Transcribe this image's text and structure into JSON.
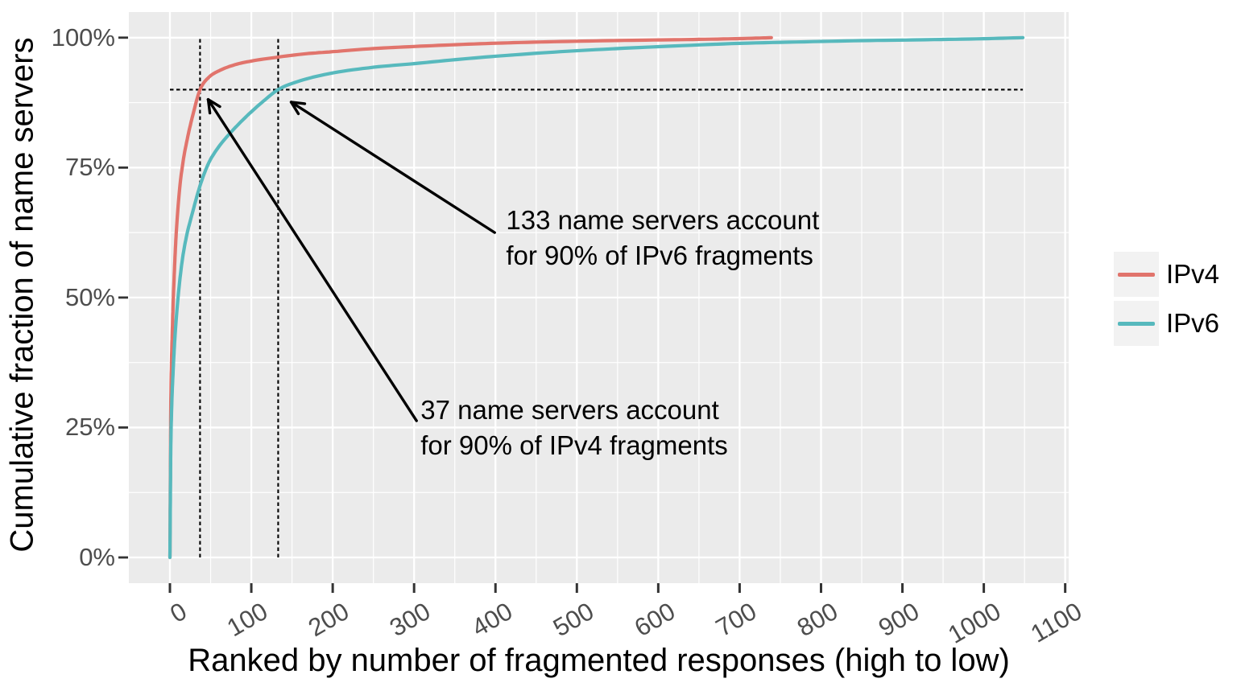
{
  "chart_data": {
    "type": "line",
    "title": "",
    "xlabel": "Ranked by number of fragmented responses (high to low)",
    "ylabel": "Cumulative fraction of name servers",
    "xlim": [
      -48,
      1105
    ],
    "ylim": [
      -5,
      105
    ],
    "grid": true,
    "legend_position": "right",
    "x_ticks": [
      {
        "label": "0",
        "value": 0
      },
      {
        "label": "100",
        "value": 100
      },
      {
        "label": "200",
        "value": 200
      },
      {
        "label": "300",
        "value": 300
      },
      {
        "label": "400",
        "value": 400
      },
      {
        "label": "500",
        "value": 500
      },
      {
        "label": "600",
        "value": 600
      },
      {
        "label": "700",
        "value": 700
      },
      {
        "label": "800",
        "value": 800
      },
      {
        "label": "900",
        "value": 900
      },
      {
        "label": "1000",
        "value": 1000
      },
      {
        "label": "1100",
        "value": 1100
      }
    ],
    "y_ticks": [
      {
        "label": "0%",
        "value": 0
      },
      {
        "label": "25%",
        "value": 25
      },
      {
        "label": "50%",
        "value": 50
      },
      {
        "label": "75%",
        "value": 75
      },
      {
        "label": "100%",
        "value": 100
      }
    ],
    "series": [
      {
        "name": "IPv4",
        "color": "#E1746C",
        "points": [
          [
            0,
            0
          ],
          [
            0.5,
            14
          ],
          [
            1,
            28
          ],
          [
            2,
            38
          ],
          [
            3,
            44
          ],
          [
            4,
            49
          ],
          [
            6,
            57
          ],
          [
            8,
            63
          ],
          [
            12,
            71
          ],
          [
            16,
            76
          ],
          [
            22,
            81
          ],
          [
            28,
            85
          ],
          [
            37,
            90
          ],
          [
            48,
            92.4
          ],
          [
            60,
            93.6
          ],
          [
            80,
            94.8
          ],
          [
            100,
            95.5
          ],
          [
            130,
            96.2
          ],
          [
            167,
            96.9
          ],
          [
            200,
            97.3
          ],
          [
            250,
            97.9
          ],
          [
            300,
            98.3
          ],
          [
            360,
            98.7
          ],
          [
            415,
            99.0
          ],
          [
            480,
            99.25
          ],
          [
            550,
            99.45
          ],
          [
            620,
            99.6
          ],
          [
            680,
            99.75
          ],
          [
            720,
            99.9
          ],
          [
            739,
            100
          ]
        ]
      },
      {
        "name": "IPv6",
        "color": "#57B9BD",
        "points": [
          [
            0,
            0
          ],
          [
            0.5,
            10
          ],
          [
            1,
            20
          ],
          [
            2,
            28
          ],
          [
            4,
            36
          ],
          [
            6,
            42
          ],
          [
            10,
            50
          ],
          [
            15,
            57
          ],
          [
            20,
            61.5
          ],
          [
            28,
            66.5
          ],
          [
            38,
            72
          ],
          [
            48,
            76
          ],
          [
            60,
            79
          ],
          [
            75,
            81.8
          ],
          [
            95,
            85
          ],
          [
            115,
            87.8
          ],
          [
            133,
            90
          ],
          [
            160,
            91.7
          ],
          [
            200,
            93.2
          ],
          [
            250,
            94.3
          ],
          [
            300,
            95.0
          ],
          [
            360,
            95.9
          ],
          [
            415,
            96.6
          ],
          [
            480,
            97.3
          ],
          [
            550,
            97.9
          ],
          [
            620,
            98.4
          ],
          [
            700,
            98.9
          ],
          [
            780,
            99.2
          ],
          [
            860,
            99.45
          ],
          [
            930,
            99.6
          ],
          [
            1000,
            99.8
          ],
          [
            1048,
            100
          ]
        ]
      }
    ],
    "guides": {
      "threshold_pct": 90,
      "ipv4_rank_at_90pct": 37,
      "ipv6_rank_at_90pct": 133,
      "hline_extends_to_rank": 1048
    },
    "annotations": [
      {
        "id": "ipv6",
        "line1": "133 name servers account",
        "line2": "for 90% of IPv6 fragments",
        "text_pos": [
          413,
          68.3
        ],
        "arrow_from": [
          399,
          62.5
        ],
        "arrow_to": [
          149,
          87.6
        ]
      },
      {
        "id": "ipv4",
        "line1": "37 name servers account",
        "line2": "for 90% of IPv4 fragments",
        "text_pos": [
          308,
          31.7
        ],
        "arrow_from": [
          303,
          26.3
        ],
        "arrow_to": [
          47,
          88.1
        ]
      }
    ],
    "legend": {
      "entries": [
        {
          "label": "IPv4",
          "color": "#E1746C"
        },
        {
          "label": "IPv6",
          "color": "#57B9BD"
        }
      ]
    }
  },
  "style_colors": {
    "panel_background": "#EBEBEB",
    "gridline": "#FFFFFF",
    "axis_text": "#4D4D4D",
    "axis_tick_mark": "#333333",
    "guide_line": "#000000",
    "annotation_text": "#000000",
    "legend_key_background": "#F2F2F2"
  }
}
